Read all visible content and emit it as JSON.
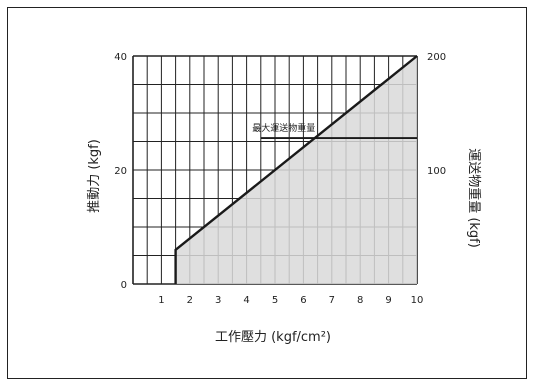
{
  "chart_data": {
    "type": "area",
    "xlabel": "工作壓力 (kgf/cm²)",
    "ylabel_left": "推動力 (kgf)",
    "ylabel_right": "運送物重量 (kgf)",
    "x_ticks": [
      "1",
      "2",
      "3",
      "4",
      "5",
      "6",
      "7",
      "8",
      "9",
      "10"
    ],
    "y_left_ticks": [
      "0",
      "20",
      "40"
    ],
    "y_right_ticks": [
      "100",
      "200"
    ],
    "xlim": [
      0,
      10
    ],
    "ylim_left": [
      0,
      40
    ],
    "ylim_right": [
      0,
      200
    ],
    "grid": true,
    "series": [
      {
        "x": [
          1.5,
          1.5,
          10
        ],
        "y": [
          0,
          6,
          40
        ]
      }
    ],
    "annotation": {
      "text": "最大運送物重量",
      "y_right": 128
    },
    "colors": {
      "line": "#1a1a1a",
      "fill": "#d9d9d9",
      "grid": "#222222"
    }
  }
}
